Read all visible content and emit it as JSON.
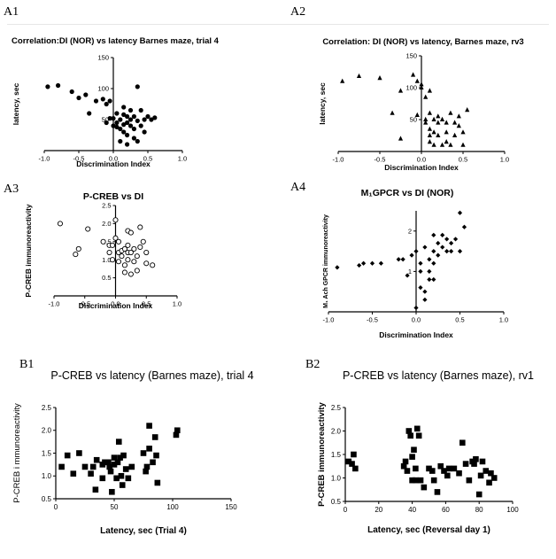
{
  "panel_labels": [
    "A1",
    "A2",
    "A3",
    "A4",
    "B1",
    "B2"
  ],
  "chart_data": [
    {
      "panel": "A1",
      "type": "scatter",
      "marker": "circle",
      "title": "Correlation:DI (NOR) vs latency Barnes maze, trial 4",
      "xlabel": "Discrimination Index",
      "ylabel": "latency, sec",
      "xlim": [
        -1.0,
        1.0
      ],
      "ylim": [
        0,
        150
      ],
      "xticks": [
        "-1.0",
        "-0.5",
        "0.0",
        "0.5",
        "1.0"
      ],
      "yticks": [
        "50",
        "100",
        "150"
      ],
      "points": [
        [
          -0.95,
          103
        ],
        [
          -0.8,
          105
        ],
        [
          -0.6,
          95
        ],
        [
          -0.5,
          85
        ],
        [
          -0.4,
          90
        ],
        [
          -0.35,
          60
        ],
        [
          -0.25,
          80
        ],
        [
          -0.15,
          83
        ],
        [
          -0.1,
          75
        ],
        [
          -0.05,
          80
        ],
        [
          -0.05,
          52
        ],
        [
          0.0,
          52
        ],
        [
          0.05,
          45
        ],
        [
          0.05,
          60
        ],
        [
          0.05,
          38
        ],
        [
          0.1,
          50
        ],
        [
          0.1,
          35
        ],
        [
          0.15,
          58
        ],
        [
          0.15,
          42
        ],
        [
          0.15,
          30
        ],
        [
          0.2,
          55
        ],
        [
          0.2,
          45
        ],
        [
          0.2,
          25
        ],
        [
          0.25,
          50
        ],
        [
          0.25,
          40
        ],
        [
          0.3,
          55
        ],
        [
          0.3,
          35
        ],
        [
          0.3,
          20
        ],
        [
          0.35,
          48
        ],
        [
          0.35,
          15
        ],
        [
          0.4,
          65
        ],
        [
          0.4,
          40
        ],
        [
          0.45,
          50
        ],
        [
          0.5,
          55
        ],
        [
          0.55,
          50
        ],
        [
          0.1,
          15
        ],
        [
          0.2,
          10
        ],
        [
          0.6,
          53
        ],
        [
          0.35,
          103
        ],
        [
          0.0,
          40
        ],
        [
          -0.1,
          45
        ],
        [
          0.15,
          70
        ],
        [
          0.25,
          65
        ],
        [
          0.45,
          30
        ]
      ]
    },
    {
      "panel": "A2",
      "type": "scatter",
      "marker": "triangle",
      "title": "Correlation: DI (NOR) vs latency, Barnes maze, rv3",
      "xlabel": "Discrimination Index",
      "ylabel": "latency, sec",
      "xlim": [
        -1.0,
        1.0
      ],
      "ylim": [
        0,
        150
      ],
      "xticks": [
        "-1.0",
        "-0.5",
        "0.0",
        "0.5",
        "1.0"
      ],
      "yticks": [
        "50",
        "100",
        "150"
      ],
      "points": [
        [
          -0.95,
          110
        ],
        [
          -0.75,
          118
        ],
        [
          -0.5,
          115
        ],
        [
          -0.35,
          60
        ],
        [
          -0.25,
          95
        ],
        [
          -0.25,
          20
        ],
        [
          -0.1,
          120
        ],
        [
          -0.05,
          110
        ],
        [
          0.0,
          100
        ],
        [
          -0.05,
          57
        ],
        [
          0.05,
          50
        ],
        [
          0.05,
          45
        ],
        [
          0.1,
          60
        ],
        [
          0.1,
          35
        ],
        [
          0.1,
          25
        ],
        [
          0.1,
          15
        ],
        [
          0.15,
          50
        ],
        [
          0.15,
          30
        ],
        [
          0.2,
          55
        ],
        [
          0.2,
          45
        ],
        [
          0.2,
          25
        ],
        [
          0.25,
          50
        ],
        [
          0.25,
          10
        ],
        [
          0.3,
          45
        ],
        [
          0.3,
          30
        ],
        [
          0.35,
          60
        ],
        [
          0.35,
          10
        ],
        [
          0.4,
          45
        ],
        [
          0.4,
          25
        ],
        [
          0.45,
          55
        ],
        [
          0.5,
          30
        ],
        [
          0.5,
          10
        ],
        [
          0.55,
          65
        ],
        [
          0.15,
          10
        ],
        [
          0.05,
          85
        ],
        [
          0.0,
          105
        ],
        [
          0.3,
          15
        ],
        [
          0.45,
          40
        ],
        [
          0.1,
          95
        ]
      ]
    },
    {
      "panel": "A3",
      "type": "scatter",
      "marker": "open-circle",
      "title": "P-CREB vs DI",
      "xlabel": "Discrimination Index",
      "ylabel": "P-CREB immunoreactivity",
      "xlim": [
        -1.0,
        1.0
      ],
      "ylim": [
        0,
        2.5
      ],
      "xticks": [
        "-1.0",
        "-0.5",
        "0.0",
        "0.5",
        "1.0"
      ],
      "yticks": [
        "0.5",
        "1.0",
        "1.5",
        "2.0",
        "2.5"
      ],
      "points": [
        [
          -0.9,
          2.0
        ],
        [
          -0.65,
          1.15
        ],
        [
          -0.6,
          1.3
        ],
        [
          -0.45,
          1.85
        ],
        [
          -0.2,
          1.5
        ],
        [
          -0.1,
          1.4
        ],
        [
          -0.1,
          1.2
        ],
        [
          -0.05,
          1.4
        ],
        [
          -0.05,
          1.0
        ],
        [
          0.0,
          1.6
        ],
        [
          0.0,
          2.1
        ],
        [
          0.05,
          1.5
        ],
        [
          0.05,
          1.2
        ],
        [
          0.1,
          1.1
        ],
        [
          0.1,
          1.25
        ],
        [
          0.15,
          1.3
        ],
        [
          0.15,
          0.85
        ],
        [
          0.15,
          0.65
        ],
        [
          0.2,
          1.8
        ],
        [
          0.2,
          1.4
        ],
        [
          0.2,
          1.2
        ],
        [
          0.2,
          1.0
        ],
        [
          0.25,
          1.2
        ],
        [
          0.25,
          0.6
        ],
        [
          0.3,
          1.3
        ],
        [
          0.3,
          0.95
        ],
        [
          0.35,
          1.1
        ],
        [
          0.35,
          0.7
        ],
        [
          0.4,
          1.9
        ],
        [
          0.4,
          1.35
        ],
        [
          0.45,
          1.5
        ],
        [
          0.5,
          1.2
        ],
        [
          0.5,
          0.9
        ],
        [
          0.6,
          0.85
        ],
        [
          0.05,
          0.95
        ],
        [
          0.25,
          1.75
        ]
      ]
    },
    {
      "panel": "A4",
      "type": "scatter",
      "marker": "diamond",
      "title": "M₁GPCR vs DI (NOR)",
      "xlabel": "Discrimination Index",
      "ylabel": "M₁ Ach GPCR immunoreactivity",
      "xlim": [
        -1.0,
        1.0
      ],
      "ylim": [
        0,
        2.5
      ],
      "xticks": [
        "-1.0",
        "-0.5",
        "0.0",
        "0.5",
        "1.0"
      ],
      "yticks": [
        "1",
        "2"
      ],
      "points": [
        [
          -0.9,
          1.1
        ],
        [
          -0.65,
          1.15
        ],
        [
          -0.6,
          1.2
        ],
        [
          -0.5,
          1.2
        ],
        [
          -0.4,
          1.2
        ],
        [
          -0.2,
          1.3
        ],
        [
          -0.15,
          1.3
        ],
        [
          -0.1,
          0.9
        ],
        [
          -0.05,
          1.4
        ],
        [
          0.0,
          1.5
        ],
        [
          0.0,
          0.1
        ],
        [
          0.05,
          1.2
        ],
        [
          0.05,
          1.0
        ],
        [
          0.05,
          0.6
        ],
        [
          0.1,
          1.6
        ],
        [
          0.1,
          0.5
        ],
        [
          0.1,
          0.3
        ],
        [
          0.15,
          1.3
        ],
        [
          0.15,
          0.8
        ],
        [
          0.15,
          1.0
        ],
        [
          0.2,
          1.9
        ],
        [
          0.2,
          1.5
        ],
        [
          0.2,
          1.2
        ],
        [
          0.2,
          0.8
        ],
        [
          0.25,
          1.7
        ],
        [
          0.25,
          1.4
        ],
        [
          0.3,
          1.6
        ],
        [
          0.35,
          1.8
        ],
        [
          0.35,
          1.5
        ],
        [
          0.4,
          1.5
        ],
        [
          0.45,
          1.8
        ],
        [
          0.5,
          2.45
        ],
        [
          0.5,
          1.5
        ],
        [
          0.55,
          2.1
        ],
        [
          0.3,
          1.9
        ],
        [
          0.4,
          1.7
        ]
      ]
    },
    {
      "panel": "B1",
      "type": "scatter",
      "marker": "square",
      "title": "P-CREB vs latency (Barnes maze), trial 4",
      "xlabel": "Latency, sec (Trial 4)",
      "ylabel": "P-CREB i mmunoreactivity",
      "xlim": [
        0,
        150
      ],
      "ylim": [
        0.5,
        2.5
      ],
      "xticks": [
        "0",
        "50",
        "100",
        "150"
      ],
      "yticks": [
        "0.5",
        "1.0",
        "1.5",
        "2.0",
        "2.5"
      ],
      "points": [
        [
          5,
          1.2
        ],
        [
          10,
          1.45
        ],
        [
          15,
          1.05
        ],
        [
          20,
          1.5
        ],
        [
          25,
          1.2
        ],
        [
          30,
          1.05
        ],
        [
          32,
          1.2
        ],
        [
          34,
          0.7
        ],
        [
          35,
          1.35
        ],
        [
          40,
          1.25
        ],
        [
          40,
          0.95
        ],
        [
          42,
          1.3
        ],
        [
          45,
          1.3
        ],
        [
          46,
          1.2
        ],
        [
          47,
          1.1
        ],
        [
          48,
          0.65
        ],
        [
          50,
          1.4
        ],
        [
          50,
          1.25
        ],
        [
          52,
          0.95
        ],
        [
          53,
          1.3
        ],
        [
          54,
          1.75
        ],
        [
          55,
          1.4
        ],
        [
          56,
          1.0
        ],
        [
          57,
          0.8
        ],
        [
          58,
          1.45
        ],
        [
          60,
          1.15
        ],
        [
          62,
          0.95
        ],
        [
          65,
          1.2
        ],
        [
          75,
          1.5
        ],
        [
          77,
          1.1
        ],
        [
          78,
          1.2
        ],
        [
          80,
          1.6
        ],
        [
          80,
          2.1
        ],
        [
          83,
          1.3
        ],
        [
          85,
          1.85
        ],
        [
          86,
          1.45
        ],
        [
          87,
          0.85
        ],
        [
          103,
          1.9
        ],
        [
          104,
          2.0
        ]
      ]
    },
    {
      "panel": "B2",
      "type": "scatter",
      "marker": "square",
      "title": "P-CREB vs latency (Barnes maze), rv1",
      "xlabel": "Latency, sec (Reversal day 1)",
      "ylabel": "P-CREB immunoreactivity",
      "xlim": [
        0,
        100
      ],
      "ylim": [
        0.5,
        2.5
      ],
      "xticks": [
        "0",
        "20",
        "40",
        "60",
        "80",
        "100"
      ],
      "yticks": [
        "0.5",
        "1.0",
        "1.5",
        "2.0",
        "2.5"
      ],
      "points": [
        [
          2,
          1.35
        ],
        [
          4,
          1.3
        ],
        [
          5,
          1.5
        ],
        [
          6,
          1.2
        ],
        [
          35,
          1.25
        ],
        [
          36,
          1.35
        ],
        [
          37,
          1.15
        ],
        [
          38,
          2.0
        ],
        [
          39,
          1.9
        ],
        [
          40,
          0.95
        ],
        [
          40,
          1.45
        ],
        [
          41,
          1.6
        ],
        [
          42,
          1.2
        ],
        [
          42,
          0.95
        ],
        [
          43,
          2.05
        ],
        [
          44,
          1.9
        ],
        [
          45,
          0.95
        ],
        [
          47,
          0.8
        ],
        [
          50,
          1.2
        ],
        [
          52,
          1.15
        ],
        [
          53,
          0.95
        ],
        [
          55,
          0.7
        ],
        [
          57,
          1.25
        ],
        [
          59,
          1.15
        ],
        [
          61,
          1.05
        ],
        [
          62,
          1.2
        ],
        [
          65,
          1.2
        ],
        [
          68,
          1.1
        ],
        [
          70,
          1.75
        ],
        [
          72,
          1.3
        ],
        [
          74,
          0.95
        ],
        [
          76,
          1.35
        ],
        [
          77,
          1.3
        ],
        [
          78,
          1.4
        ],
        [
          80,
          0.65
        ],
        [
          81,
          1.05
        ],
        [
          82,
          1.35
        ],
        [
          84,
          1.15
        ],
        [
          86,
          0.9
        ],
        [
          87,
          1.1
        ],
        [
          89,
          1.0
        ]
      ]
    }
  ]
}
